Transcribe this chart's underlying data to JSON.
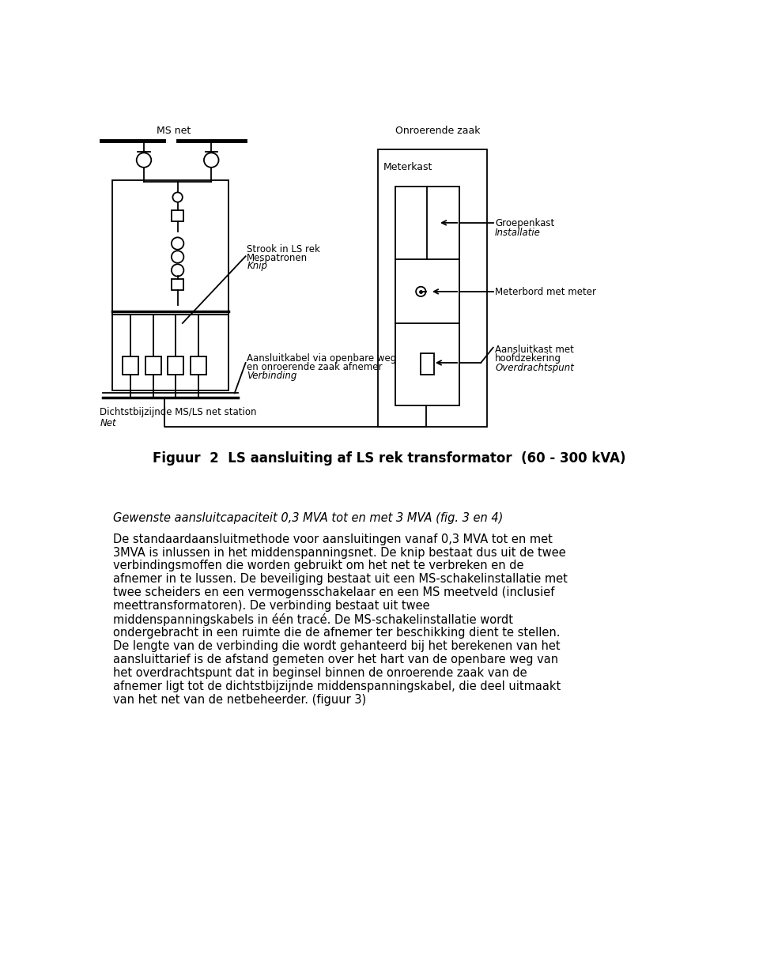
{
  "fig_width": 9.6,
  "fig_height": 12.26,
  "bg_color": "#ffffff",
  "diagram_title": "Figuur  2  LS aansluiting af LS rek transformator  (60 - 300 kVA)",
  "label_ms_net": "MS net",
  "label_onroerende_zaak": "Onroerende zaak",
  "label_meterkast": "Meterkast",
  "label_groepenkast": "Groepenkast",
  "label_installatie": "Installatie",
  "label_meterbord": "Meterbord met meter",
  "label_aansluitkast": "Aansluitkast met\nhoodfzekering",
  "label_overdrachtspunt": "Overdrachtspunt",
  "label_strook_1": "Strook in LS rek",
  "label_strook_2": "Mespatronen",
  "label_knip": "Knip",
  "label_aansluitkabel_1": "Aansluitkabel via openbare weg",
  "label_aansluitkabel_2": "en onroerende zaak afnemer",
  "label_verbinding": "Verbinding",
  "label_dichtstbijzijnde": "Dichtstbijzijnde MS/LS net station",
  "label_net": "Net",
  "paragraph_title": "Gewenste aansluitcapaciteit 0,3 MVA tot en met 3 MVA (fig. 3 en 4)",
  "paragraph_line1": "De standaardaansluitmethode voor aansluitingen vanaf 0,3 MVA tot en met",
  "paragraph_line2": "3MVA is inlussen in het middenspanningsnet. De knip bestaat dus uit de twee",
  "paragraph_line3": "verbindingsmoffen die worden gebruikt om het net te verbreken en de",
  "paragraph_line4": "afnemer in te lussen. De beveiliging bestaat uit een MS-schakelinstallatie met",
  "paragraph_line5": "twee scheiders en een vermogensschakelaar en een MS meetveld (inclusief",
  "paragraph_line6": "meettransformatoren). De verbinding bestaat uit twee",
  "paragraph_line7": "middenspanningskabels in één tracé. De MS-schakelinstallatie wordt",
  "paragraph_line8": "ondergebracht in een ruimte die de afnemer ter beschikking dient te stellen.",
  "paragraph_line9": "De lengte van de verbinding die wordt gehanteerd bij het berekenen van het",
  "paragraph_line10": "aansluittarief is de afstand gemeten over het hart van de openbare weg van",
  "paragraph_line11": "het overdrachtspunt dat in beginsel binnen de onroerende zaak van de",
  "paragraph_line12": "afnemer ligt tot de dichtstbijzijnde middenspanningskabel, die deel uitmaakt",
  "paragraph_line13": "van het net van de netbeheerder. (figuur 3)"
}
